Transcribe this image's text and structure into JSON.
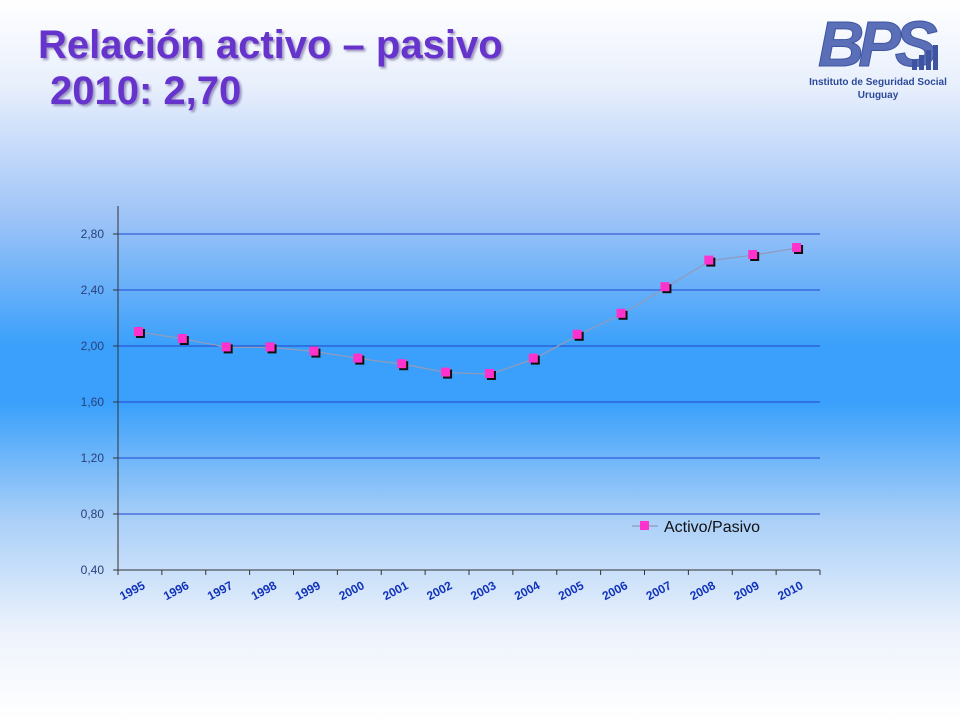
{
  "slide": {
    "title_line1": "Relación activo – pasivo",
    "title_line2": "2010: 2,70"
  },
  "logo": {
    "wordmark": "BPS",
    "org_line1": "Instituto de Seguridad Social",
    "org_line2": "Uruguay",
    "colors": {
      "primary": "#5b6fb8",
      "accent": "#2c4a9a"
    }
  },
  "colors": {
    "title": "#6633cc",
    "series": "#ff33cc",
    "marker_shadow": "#111111",
    "gridline": "#2244cc",
    "axis_text": "#2a3f7a",
    "year_label": "#1133bb"
  },
  "chart_data": {
    "type": "line",
    "title": "",
    "xlabel": "",
    "ylabel": "",
    "categories": [
      "1995",
      "1996",
      "1997",
      "1998",
      "1999",
      "2000",
      "2001",
      "2002",
      "2003",
      "2004",
      "2005",
      "2006",
      "2007",
      "2008",
      "2009",
      "2010"
    ],
    "series": [
      {
        "name": "Activo/Pasivo",
        "values": [
          2.1,
          2.05,
          1.99,
          1.99,
          1.96,
          1.91,
          1.87,
          1.81,
          1.8,
          1.91,
          2.08,
          2.23,
          2.42,
          2.61,
          2.65,
          2.7
        ],
        "marker": "square"
      }
    ],
    "ylim": [
      0.4,
      3.0
    ],
    "yticks": [
      "0,40",
      "0,80",
      "1,20",
      "1,60",
      "2,00",
      "2,40",
      "2,80"
    ],
    "ytick_values": [
      0.4,
      0.8,
      1.2,
      1.6,
      2.0,
      2.4,
      2.8
    ],
    "grid": true,
    "legend": "bottom-right"
  }
}
